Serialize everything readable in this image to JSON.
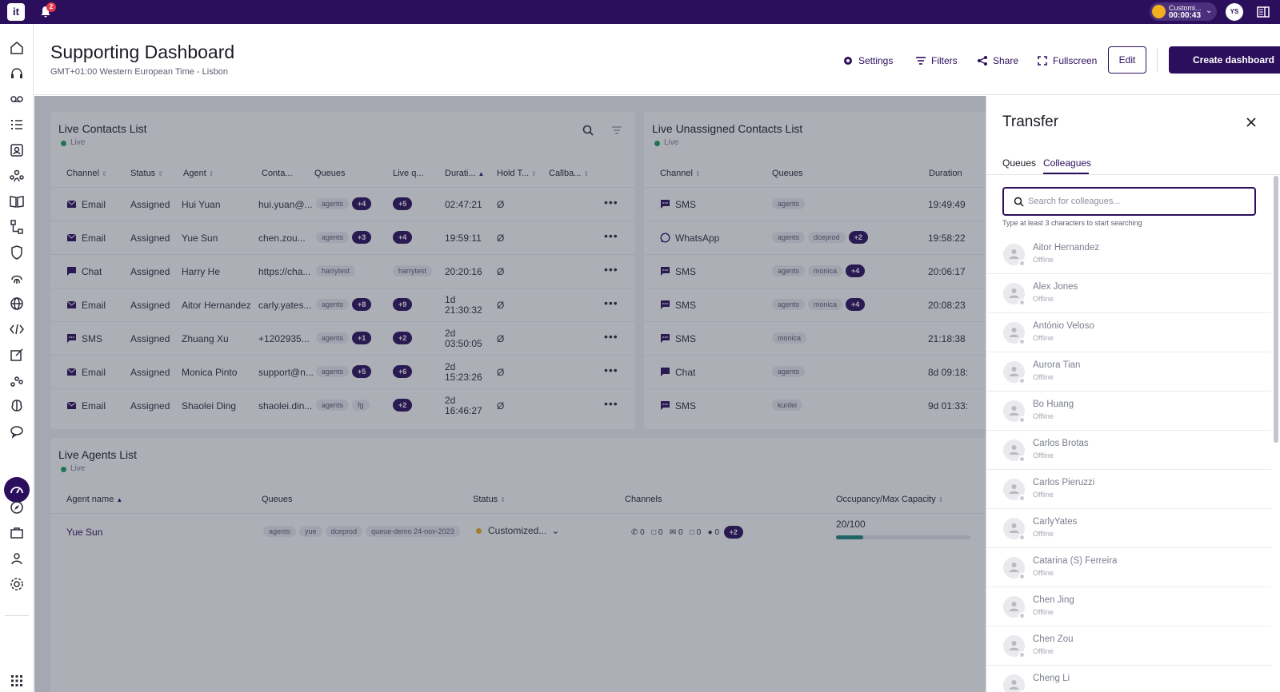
{
  "topbar": {
    "logo": "it",
    "notifications": "2",
    "status_name": "Customi...",
    "status_time": "00:00:43",
    "avatar": "YS"
  },
  "header": {
    "title": "Supporting Dashboard",
    "timezone": "GMT+01:00 Western European Time - Lisbon",
    "settings": "Settings",
    "filters": "Filters",
    "share": "Share",
    "fullscreen": "Fullscreen",
    "edit": "Edit",
    "create": "Create dashboard"
  },
  "contacts": {
    "title": "Live Contacts List",
    "live": "Live",
    "columns": [
      "Channel",
      "Status",
      "Agent",
      "Conta...",
      "Queues",
      "Live q...",
      "Durati...",
      "Hold T...",
      "Callba..."
    ],
    "rows": [
      {
        "channel": "Email",
        "status": "Assigned",
        "agent": "Hui Yuan",
        "contact": "hui.yuan@...",
        "queue": "agents",
        "queue_more": "+4",
        "live_q": "+5",
        "duration": "02:47:21",
        "hold": "Ø"
      },
      {
        "channel": "Email",
        "status": "Assigned",
        "agent": "Yue Sun",
        "contact": "chen.zou...",
        "queue": "agents",
        "queue_more": "+3",
        "live_q": "+4",
        "duration": "19:59:11",
        "hold": "Ø"
      },
      {
        "channel": "Chat",
        "status": "Assigned",
        "agent": "Harry He",
        "contact": "https://cha...",
        "queue": "harrytest",
        "queue_more": "",
        "live_q_tag": "harrytest",
        "duration": "20:20:16",
        "hold": "Ø"
      },
      {
        "channel": "Email",
        "status": "Assigned",
        "agent": "Aitor Hernandez",
        "contact": "carly.yates...",
        "queue": "agents",
        "queue_more": "+8",
        "live_q": "+9",
        "duration_1": "1d",
        "duration_2": "21:30:32",
        "hold": "Ø"
      },
      {
        "channel": "SMS",
        "status": "Assigned",
        "agent": "Zhuang Xu",
        "contact": "+1202935...",
        "queue": "agents",
        "queue_more": "+1",
        "live_q": "+2",
        "duration_1": "2d",
        "duration_2": "03:50:05",
        "hold": "Ø"
      },
      {
        "channel": "Email",
        "status": "Assigned",
        "agent": "Monica Pinto",
        "contact": "support@n...",
        "queue": "agents",
        "queue_more": "+5",
        "live_q": "+6",
        "duration_1": "2d",
        "duration_2": "15:23:26",
        "hold": "Ø"
      },
      {
        "channel": "Email",
        "status": "Assigned",
        "agent": "Shaolei Ding",
        "contact": "shaolei.din...",
        "queue": "agents",
        "queue_tag2": "fg",
        "live_q": "+2",
        "duration_1": "2d",
        "duration_2": "16:46:27",
        "hold": "Ø"
      }
    ]
  },
  "unassigned": {
    "title": "Live Unassigned Contacts List",
    "live": "Live",
    "columns": [
      "Channel",
      "Queues",
      "Duration"
    ],
    "rows": [
      {
        "channel": "SMS",
        "queues": [
          "agents"
        ],
        "more": "",
        "duration": "19:49:49"
      },
      {
        "channel": "WhatsApp",
        "queues": [
          "agents",
          "dceprod"
        ],
        "more": "+2",
        "duration": "19:58:22"
      },
      {
        "channel": "SMS",
        "queues": [
          "agents",
          "monica"
        ],
        "more": "+4",
        "duration": "20:06:17"
      },
      {
        "channel": "SMS",
        "queues": [
          "agents",
          "monica"
        ],
        "more": "+4",
        "duration": "20:08:23"
      },
      {
        "channel": "SMS",
        "queues": [
          "monica"
        ],
        "more": "",
        "duration": "21:18:38"
      },
      {
        "channel": "Chat",
        "queues": [
          "agents"
        ],
        "more": "",
        "duration": "8d 09:18:"
      },
      {
        "channel": "SMS",
        "queues": [
          "kunfei"
        ],
        "more": "",
        "duration": "9d 01:33:"
      }
    ]
  },
  "agents": {
    "title": "Live Agents List",
    "live": "Live",
    "columns": [
      "Agent name",
      "Queues",
      "Status",
      "Channels",
      "Occupancy/Max Capacity"
    ],
    "row": {
      "name": "Yue Sun",
      "queues": [
        "agents",
        "yue",
        "dceprod",
        "queue-demo 24-nov-2023"
      ],
      "status": "Customized...",
      "channel_counts": [
        "0",
        "0",
        "0",
        "0",
        "0"
      ],
      "channel_more": "+2",
      "occupancy": "20/100",
      "occupancy_fraction": 0.2
    }
  },
  "transfer": {
    "title": "Transfer",
    "tabs": [
      "Queues",
      "Colleagues"
    ],
    "active_tab": "Colleagues",
    "search_placeholder": "Search for colleagues...",
    "hint": "Type at least 3 characters to start searching",
    "colleagues": [
      {
        "name": "Aitor Hernandez",
        "status": "Offline"
      },
      {
        "name": "Alex Jones",
        "status": "Offline"
      },
      {
        "name": "António Veloso",
        "status": "Offline"
      },
      {
        "name": "Aurora Tian",
        "status": "Offline"
      },
      {
        "name": "Bo Huang",
        "status": "Offline"
      },
      {
        "name": "Carlos Brotas",
        "status": "Offline"
      },
      {
        "name": "Carlos Pieruzzi",
        "status": "Offline"
      },
      {
        "name": "CarlyYates",
        "status": "Offline"
      },
      {
        "name": "Catarina (S) Ferreira",
        "status": "Offline"
      },
      {
        "name": "Chen Jing",
        "status": "Offline"
      },
      {
        "name": "Chen Zou",
        "status": "Offline"
      },
      {
        "name": "Cheng Li",
        "status": ""
      }
    ]
  },
  "colors": {
    "brand": "#2c0f5c",
    "live": "#1aa25d",
    "occupancy": "#1c8a7c"
  }
}
